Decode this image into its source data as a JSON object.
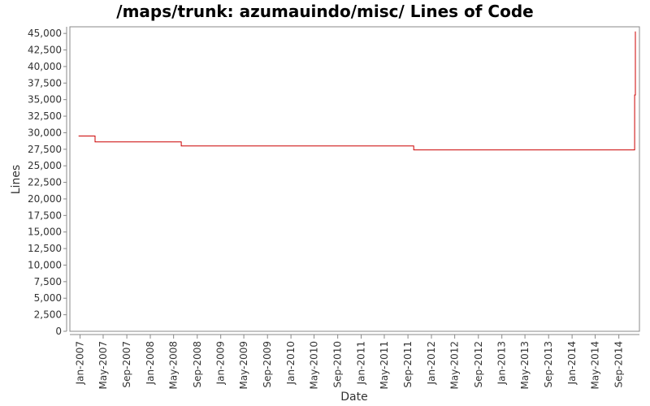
{
  "chart_data": {
    "type": "line",
    "title": "/maps/trunk: azumauindo/misc/ Lines of Code",
    "xlabel": "Date",
    "ylabel": "Lines",
    "ylim": [
      0,
      46000
    ],
    "xlim": [
      "2006-11-09",
      "2014-12-17"
    ],
    "y_ticks": [
      0,
      2500,
      5000,
      7500,
      10000,
      12500,
      15000,
      17500,
      20000,
      22500,
      25000,
      27500,
      30000,
      32500,
      35000,
      37500,
      40000,
      42500,
      45000
    ],
    "y_tick_labels": [
      "0",
      "2,500",
      "5,000",
      "7,500",
      "10,000",
      "12,500",
      "15,000",
      "17,500",
      "20,000",
      "22,500",
      "25,000",
      "27,500",
      "30,000",
      "32,500",
      "35,000",
      "37,500",
      "40,000",
      "42,500",
      "45,000"
    ],
    "x_ticks": [
      "2007-01-01",
      "2007-05-01",
      "2007-09-01",
      "2008-01-01",
      "2008-05-01",
      "2008-09-01",
      "2009-01-01",
      "2009-05-01",
      "2009-09-01",
      "2010-01-01",
      "2010-05-01",
      "2010-09-01",
      "2011-01-01",
      "2011-05-01",
      "2011-09-01",
      "2012-01-01",
      "2012-05-01",
      "2012-09-01",
      "2013-01-01",
      "2013-05-01",
      "2013-09-01",
      "2014-01-01",
      "2014-05-01",
      "2014-09-01"
    ],
    "x_tick_labels": [
      "Jan-2007",
      "May-2007",
      "Sep-2007",
      "Jan-2008",
      "May-2008",
      "Sep-2008",
      "Jan-2009",
      "May-2009",
      "Sep-2009",
      "Jan-2010",
      "May-2010",
      "Sep-2010",
      "Jan-2011",
      "May-2011",
      "Sep-2011",
      "Jan-2012",
      "May-2012",
      "Sep-2012",
      "Jan-2013",
      "May-2013",
      "Sep-2013",
      "Jan-2014",
      "May-2014",
      "Sep-2014"
    ],
    "grid": false,
    "series": [
      {
        "color": "#cc0000",
        "step": true,
        "x": [
          "2006-12-24",
          "2007-03-20",
          "2008-06-10",
          "2011-10-01",
          "2014-11-22",
          "2014-11-26"
        ],
        "y": [
          29500,
          28600,
          28000,
          27400,
          35700,
          45300
        ]
      }
    ]
  }
}
